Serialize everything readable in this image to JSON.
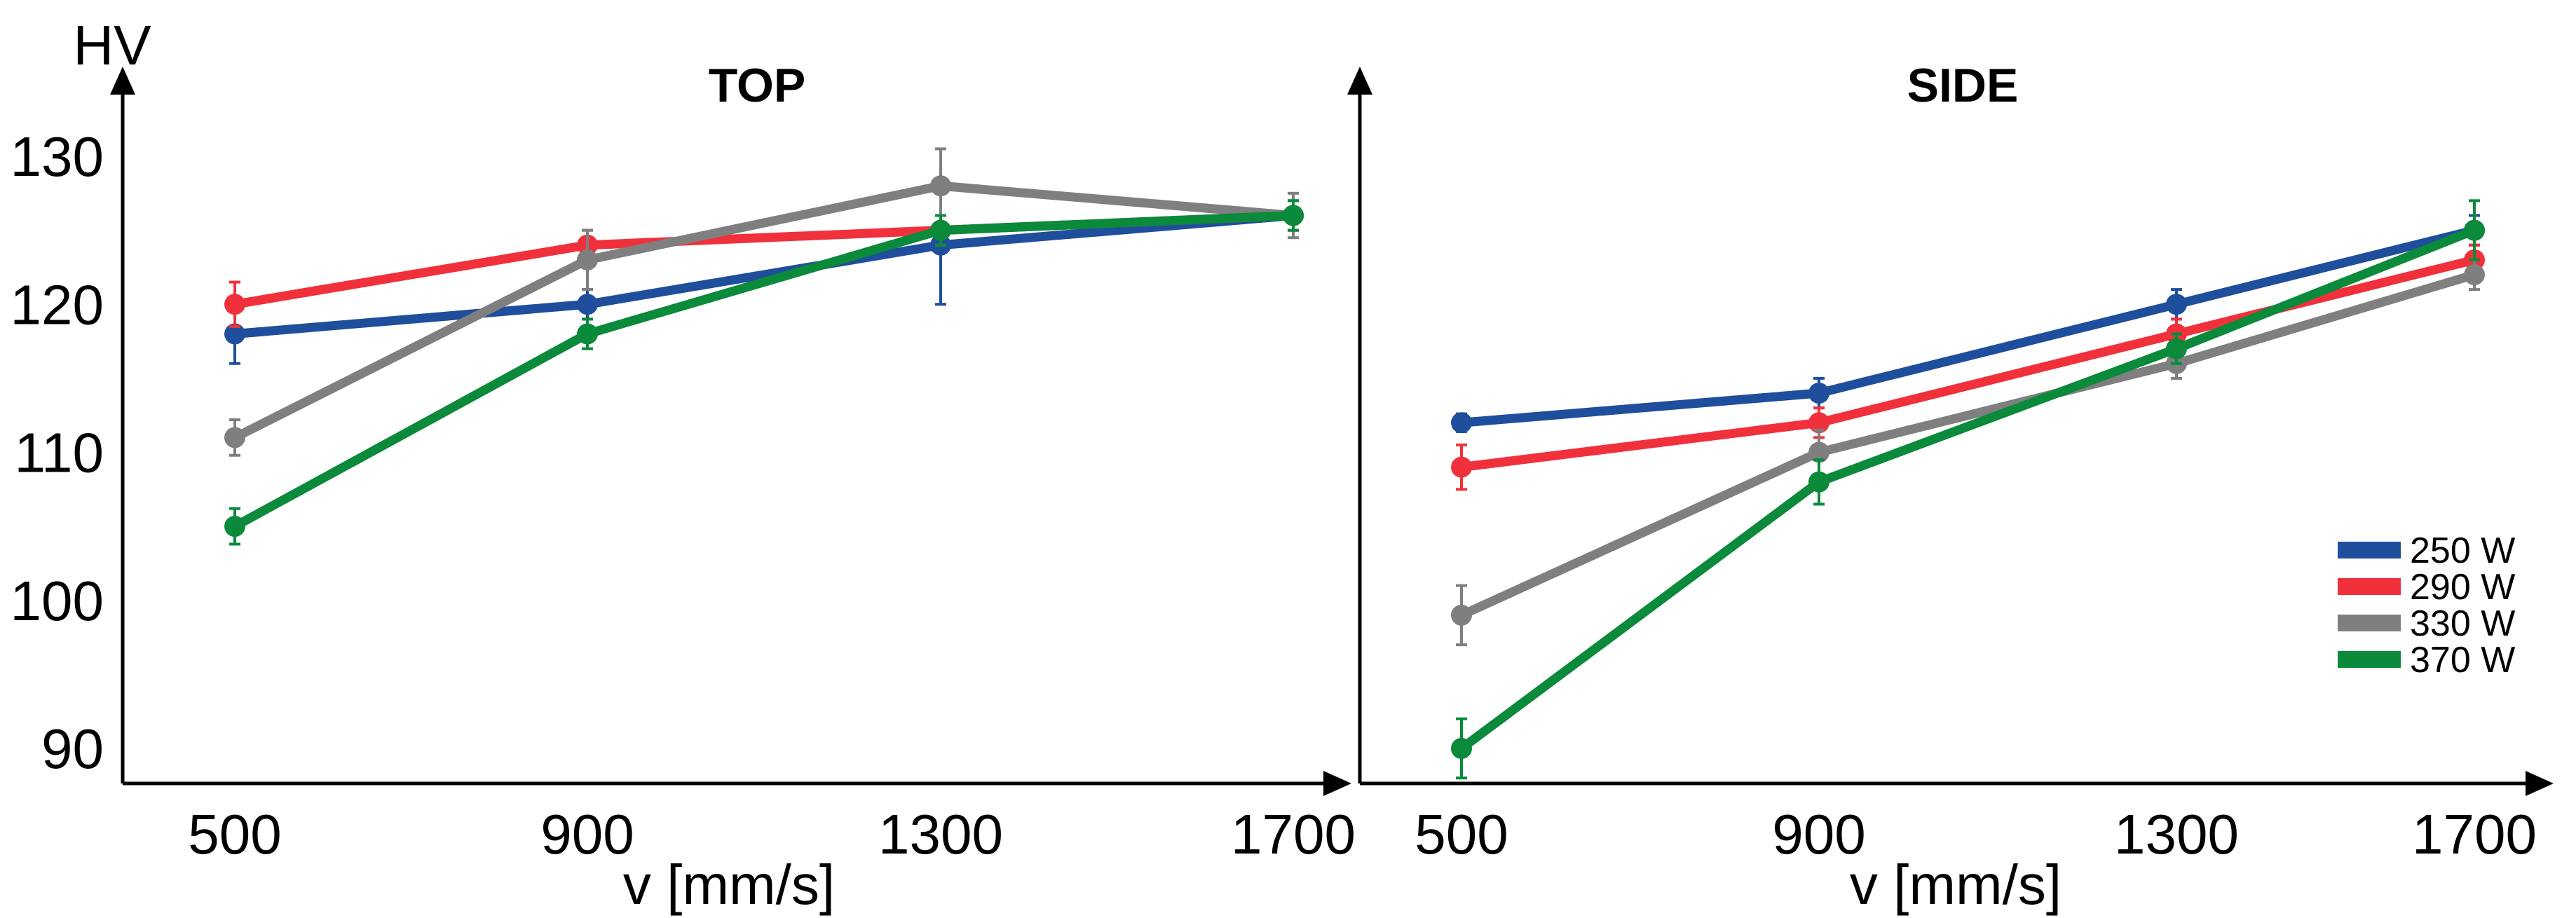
{
  "chart_data": [
    {
      "type": "line",
      "title": "TOP",
      "xlabel": "v [mm/s]",
      "ylabel": "HV",
      "categories": [
        "500",
        "900",
        "1300",
        "1700"
      ],
      "ylim": [
        88,
        135
      ],
      "yticks": [
        "90",
        "100",
        "110",
        "120",
        "130"
      ],
      "grid": false,
      "series": [
        {
          "name": "250 W",
          "color": "#1f4e9c",
          "values": [
            118,
            120,
            124,
            126
          ],
          "errors": [
            2,
            1,
            4,
            1
          ]
        },
        {
          "name": "290 W",
          "color": "#f0313c",
          "values": [
            120,
            124,
            125,
            126
          ],
          "errors": [
            1.5,
            1,
            1,
            1
          ]
        },
        {
          "name": "330 W",
          "color": "#7f7f7f",
          "values": [
            111,
            123,
            128,
            126
          ],
          "errors": [
            1.2,
            2,
            2.5,
            1.5
          ]
        },
        {
          "name": "370 W",
          "color": "#0a8a3a",
          "values": [
            105,
            118,
            125,
            126
          ],
          "errors": [
            1.2,
            1,
            1,
            1
          ]
        }
      ]
    },
    {
      "type": "line",
      "title": "SIDE",
      "xlabel": "v [mm/s]",
      "ylabel": "",
      "categories": [
        "500",
        "900",
        "1300",
        "1700"
      ],
      "ylim": [
        88,
        135
      ],
      "yticks": [],
      "grid": false,
      "legend_position": "right",
      "series": [
        {
          "name": "250 W",
          "color": "#1f4e9c",
          "values": [
            112,
            114,
            120,
            125
          ],
          "errors": [
            0.6,
            1,
            1,
            1
          ]
        },
        {
          "name": "290 W",
          "color": "#f0313c",
          "values": [
            109,
            112,
            118,
            123
          ],
          "errors": [
            1.5,
            1,
            1,
            1
          ]
        },
        {
          "name": "330 W",
          "color": "#7f7f7f",
          "values": [
            99,
            110,
            116,
            122
          ],
          "errors": [
            2,
            1.5,
            1,
            1
          ]
        },
        {
          "name": "370 W",
          "color": "#0a8a3a",
          "values": [
            90,
            108,
            117,
            125
          ],
          "errors": [
            2,
            1.5,
            1,
            2
          ]
        }
      ]
    }
  ]
}
